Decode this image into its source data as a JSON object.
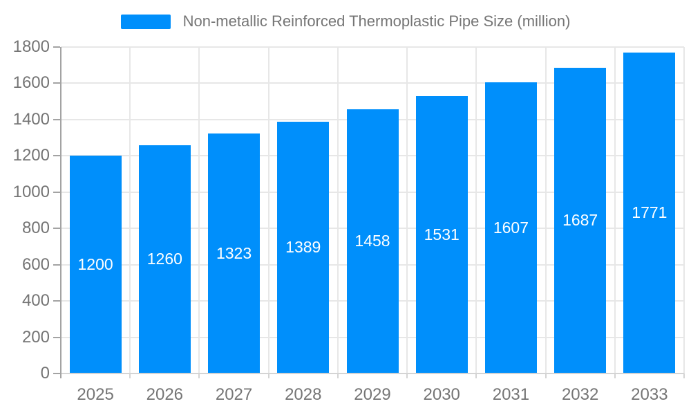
{
  "legend": {
    "label": "Non-metallic Reinforced Thermoplastic Pipe Size (million)"
  },
  "colors": {
    "bar": "#008FFB",
    "bar_label": "#ffffff",
    "grid": "#e7e7e7",
    "axis": "#a3a3a3",
    "minor_tick": "#d4d4d4",
    "text": "#757575",
    "background": "#ffffff"
  },
  "chart_data": {
    "type": "bar",
    "title": "Non-metallic Reinforced Thermoplastic Pipe Size (million)",
    "categories": [
      "2025",
      "2026",
      "2027",
      "2028",
      "2029",
      "2030",
      "2031",
      "2032",
      "2033"
    ],
    "values": [
      1200,
      1260,
      1323,
      1389,
      1458,
      1531,
      1607,
      1687,
      1771
    ],
    "xlabel": "",
    "ylabel": "",
    "ylim": [
      0,
      1800
    ],
    "ytick_step": 200,
    "grid": true,
    "legend_position": "top",
    "bar_labels_visible": true
  }
}
